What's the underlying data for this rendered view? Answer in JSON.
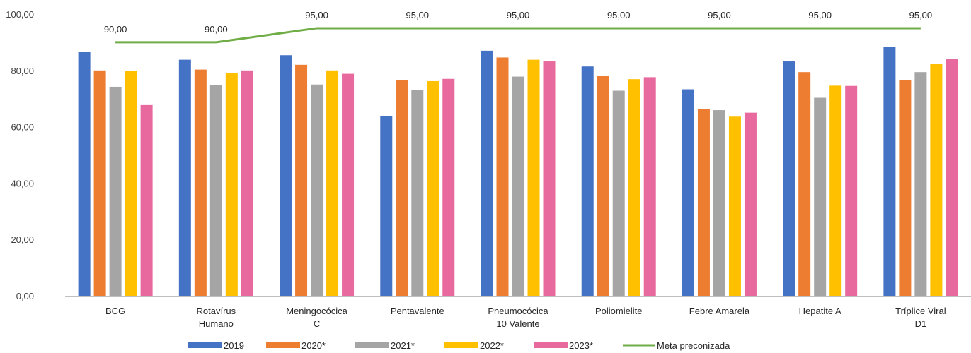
{
  "chart_data": {
    "type": "bar",
    "title": "",
    "xlabel": "",
    "ylabel": "",
    "ylim": [
      0,
      100
    ],
    "yticks": [
      "0,00",
      "20,00",
      "40,00",
      "60,00",
      "80,00",
      "100,00"
    ],
    "yticks_values": [
      0,
      20,
      40,
      60,
      80,
      100
    ],
    "categories": [
      [
        "BCG"
      ],
      [
        "Rotavírus",
        "Humano"
      ],
      [
        "Meningocócica",
        "C"
      ],
      [
        "Pentavalente"
      ],
      [
        "Pneumocócica",
        "10 Valente"
      ],
      [
        "Poliomielite"
      ],
      [
        "Febre Amarela"
      ],
      [
        "Hepatite A"
      ],
      [
        "Tríplice Viral",
        "D1"
      ]
    ],
    "series": [
      {
        "name": "2019",
        "color": "#4472C4",
        "values": [
          86.7,
          83.8,
          85.4,
          63.9,
          87.0,
          81.4,
          73.3,
          83.2,
          88.4
        ]
      },
      {
        "name": "2020*",
        "color": "#ED7D31",
        "values": [
          80.0,
          80.3,
          82.0,
          76.5,
          84.6,
          78.2,
          66.3,
          79.4,
          76.5
        ]
      },
      {
        "name": "2021*",
        "color": "#A5A5A5",
        "values": [
          74.2,
          74.8,
          75.0,
          73.0,
          77.8,
          72.8,
          65.9,
          70.3,
          79.4
        ]
      },
      {
        "name": "2022*",
        "color": "#FFC000",
        "values": [
          79.7,
          79.1,
          80.0,
          76.2,
          83.8,
          76.9,
          63.6,
          74.6,
          82.2
        ]
      },
      {
        "name": "2023*",
        "color": "#E8699E",
        "values": [
          67.7,
          80.0,
          78.8,
          77.0,
          83.2,
          77.6,
          65.0,
          74.5,
          84.0
        ]
      }
    ],
    "line": {
      "name": "Meta preconizada",
      "color": "#70AD47",
      "values": [
        90,
        90,
        95,
        95,
        95,
        95,
        95,
        95,
        95
      ],
      "labels": [
        "90,00",
        "90,00",
        "95,00",
        "95,00",
        "95,00",
        "95,00",
        "95,00",
        "95,00",
        "95,00"
      ]
    },
    "grid": false,
    "legend": "bottom"
  }
}
